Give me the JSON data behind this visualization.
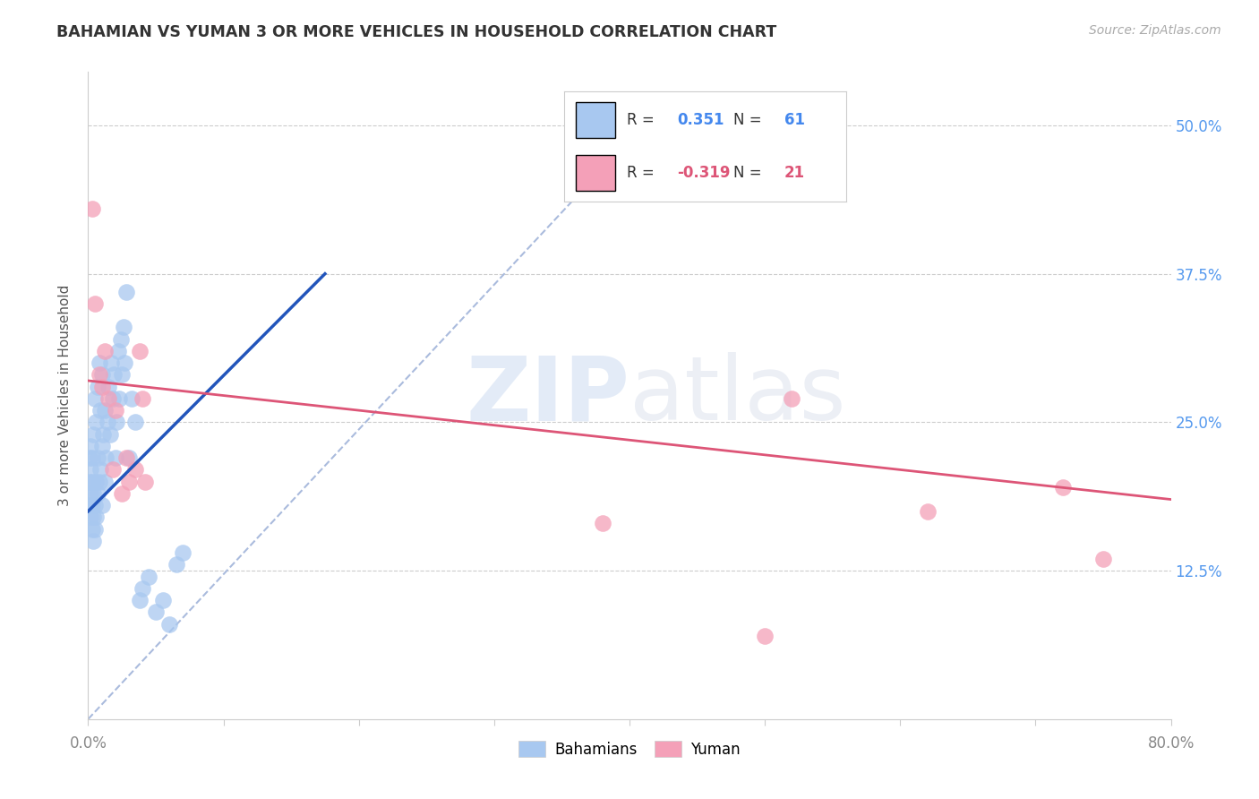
{
  "title": "BAHAMIAN VS YUMAN 3 OR MORE VEHICLES IN HOUSEHOLD CORRELATION CHART",
  "source": "Source: ZipAtlas.com",
  "ylabel": "3 or more Vehicles in Household",
  "ytick_labels": [
    "50.0%",
    "37.5%",
    "25.0%",
    "12.5%"
  ],
  "ytick_values": [
    0.5,
    0.375,
    0.25,
    0.125
  ],
  "xlim": [
    0.0,
    0.8
  ],
  "ylim": [
    0.0,
    0.545
  ],
  "legend_r_blue": "R =  0.351",
  "legend_n_blue": "N = 61",
  "legend_r_pink": "R = -0.319",
  "legend_n_pink": "N = 21",
  "blue_color": "#A8C8F0",
  "pink_color": "#F4A0B8",
  "blue_line_color": "#2255BB",
  "pink_line_color": "#DD5577",
  "ref_line_color": "#AABBDD",
  "background_color": "#FFFFFF",
  "watermark_zip": "ZIP",
  "watermark_atlas": "atlas",
  "blue_line_x": [
    0.0,
    0.175
  ],
  "blue_line_y": [
    0.175,
    0.375
  ],
  "pink_line_x": [
    0.0,
    0.8
  ],
  "pink_line_y": [
    0.285,
    0.185
  ],
  "ref_line_x": [
    0.0,
    0.41
  ],
  "ref_line_y": [
    0.0,
    0.5
  ],
  "bahamians_x": [
    0.001,
    0.001,
    0.001,
    0.002,
    0.002,
    0.002,
    0.002,
    0.003,
    0.003,
    0.003,
    0.003,
    0.004,
    0.004,
    0.004,
    0.004,
    0.005,
    0.005,
    0.005,
    0.006,
    0.006,
    0.006,
    0.007,
    0.007,
    0.007,
    0.008,
    0.008,
    0.009,
    0.009,
    0.01,
    0.01,
    0.01,
    0.011,
    0.012,
    0.012,
    0.013,
    0.014,
    0.015,
    0.016,
    0.017,
    0.018,
    0.019,
    0.02,
    0.021,
    0.022,
    0.023,
    0.024,
    0.025,
    0.026,
    0.027,
    0.028,
    0.03,
    0.032,
    0.035,
    0.038,
    0.04,
    0.045,
    0.05,
    0.055,
    0.06,
    0.065,
    0.07
  ],
  "bahamians_y": [
    0.18,
    0.2,
    0.22,
    0.17,
    0.19,
    0.21,
    0.23,
    0.16,
    0.18,
    0.2,
    0.22,
    0.15,
    0.17,
    0.19,
    0.24,
    0.16,
    0.18,
    0.27,
    0.17,
    0.2,
    0.25,
    0.19,
    0.22,
    0.28,
    0.2,
    0.3,
    0.21,
    0.26,
    0.18,
    0.23,
    0.29,
    0.24,
    0.2,
    0.26,
    0.22,
    0.25,
    0.28,
    0.24,
    0.3,
    0.27,
    0.29,
    0.22,
    0.25,
    0.31,
    0.27,
    0.32,
    0.29,
    0.33,
    0.3,
    0.36,
    0.22,
    0.27,
    0.25,
    0.1,
    0.11,
    0.12,
    0.09,
    0.1,
    0.08,
    0.13,
    0.14
  ],
  "yuman_x": [
    0.003,
    0.005,
    0.008,
    0.01,
    0.012,
    0.015,
    0.018,
    0.02,
    0.025,
    0.028,
    0.03,
    0.035,
    0.038,
    0.04,
    0.042,
    0.38,
    0.5,
    0.52,
    0.62,
    0.72,
    0.75
  ],
  "yuman_y": [
    0.43,
    0.35,
    0.29,
    0.28,
    0.31,
    0.27,
    0.21,
    0.26,
    0.19,
    0.22,
    0.2,
    0.21,
    0.31,
    0.27,
    0.2,
    0.165,
    0.07,
    0.27,
    0.175,
    0.195,
    0.135
  ]
}
